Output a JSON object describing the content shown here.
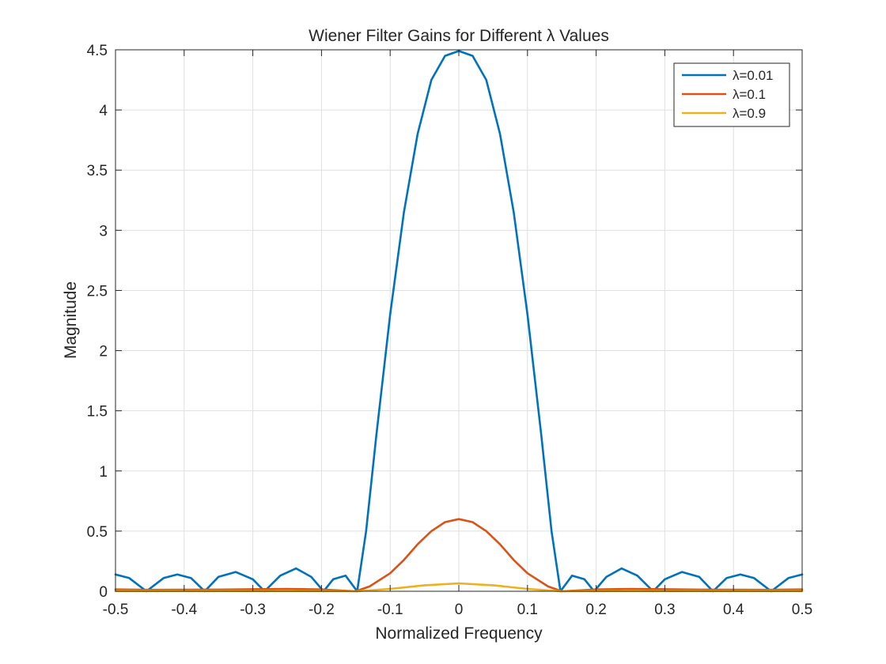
{
  "chart_data": {
    "type": "line",
    "title": "Wiener Filter Gains for Different λ Values",
    "xlabel": "Normalized Frequency",
    "ylabel": "Magnitude",
    "xlim": [
      -0.5,
      0.5
    ],
    "ylim": [
      0,
      4.5
    ],
    "xticks": [
      "-0.5",
      "-0.4",
      "-0.3",
      "-0.2",
      "-0.1",
      "0",
      "0.1",
      "0.2",
      "0.3",
      "0.4",
      "0.5"
    ],
    "yticks": [
      "0",
      "0.5",
      "1",
      "1.5",
      "2",
      "2.5",
      "3",
      "3.5",
      "4",
      "4.5"
    ],
    "grid": true,
    "legend_position": "top-right",
    "series": [
      {
        "name": "λ=0.01",
        "color": "#0072BD",
        "x": [
          -0.5,
          -0.48,
          -0.455,
          -0.43,
          -0.41,
          -0.39,
          -0.37,
          -0.35,
          -0.325,
          -0.3,
          -0.283,
          -0.26,
          -0.237,
          -0.215,
          -0.197,
          -0.183,
          -0.165,
          -0.148,
          -0.135,
          -0.12,
          -0.1,
          -0.08,
          -0.06,
          -0.04,
          -0.02,
          0,
          0.02,
          0.04,
          0.06,
          0.08,
          0.1,
          0.12,
          0.135,
          0.148,
          0.165,
          0.183,
          0.197,
          0.215,
          0.237,
          0.26,
          0.283,
          0.3,
          0.325,
          0.35,
          0.37,
          0.39,
          0.41,
          0.43,
          0.455,
          0.48,
          0.5
        ],
        "y": [
          0.14,
          0.11,
          0.0,
          0.11,
          0.14,
          0.11,
          0.0,
          0.12,
          0.16,
          0.1,
          0.0,
          0.13,
          0.19,
          0.12,
          0.0,
          0.1,
          0.13,
          0.0,
          0.5,
          1.3,
          2.3,
          3.15,
          3.8,
          4.25,
          4.45,
          4.49,
          4.45,
          4.25,
          3.8,
          3.15,
          2.3,
          1.3,
          0.5,
          0.0,
          0.13,
          0.1,
          0.0,
          0.12,
          0.19,
          0.13,
          0.0,
          0.1,
          0.16,
          0.12,
          0.0,
          0.11,
          0.14,
          0.11,
          0.0,
          0.11,
          0.14
        ]
      },
      {
        "name": "λ=0.1",
        "color": "#D95319",
        "x": [
          -0.5,
          -0.45,
          -0.4,
          -0.35,
          -0.3,
          -0.25,
          -0.2,
          -0.15,
          -0.13,
          -0.1,
          -0.08,
          -0.06,
          -0.04,
          -0.02,
          0,
          0.02,
          0.04,
          0.06,
          0.08,
          0.1,
          0.13,
          0.15,
          0.2,
          0.25,
          0.3,
          0.35,
          0.4,
          0.45,
          0.5
        ],
        "y": [
          0.015,
          0.012,
          0.013,
          0.014,
          0.017,
          0.02,
          0.015,
          0.0,
          0.04,
          0.15,
          0.26,
          0.39,
          0.5,
          0.575,
          0.6,
          0.575,
          0.5,
          0.39,
          0.26,
          0.15,
          0.04,
          0.0,
          0.015,
          0.02,
          0.017,
          0.014,
          0.013,
          0.012,
          0.015
        ]
      },
      {
        "name": "λ=0.9",
        "color": "#EDB120",
        "x": [
          -0.5,
          -0.4,
          -0.3,
          -0.2,
          -0.15,
          -0.1,
          -0.05,
          0,
          0.05,
          0.1,
          0.15,
          0.2,
          0.3,
          0.4,
          0.5
        ],
        "y": [
          0.002,
          0.002,
          0.002,
          0.002,
          0.0,
          0.02,
          0.05,
          0.066,
          0.05,
          0.02,
          0.0,
          0.002,
          0.002,
          0.002,
          0.002
        ]
      }
    ]
  }
}
